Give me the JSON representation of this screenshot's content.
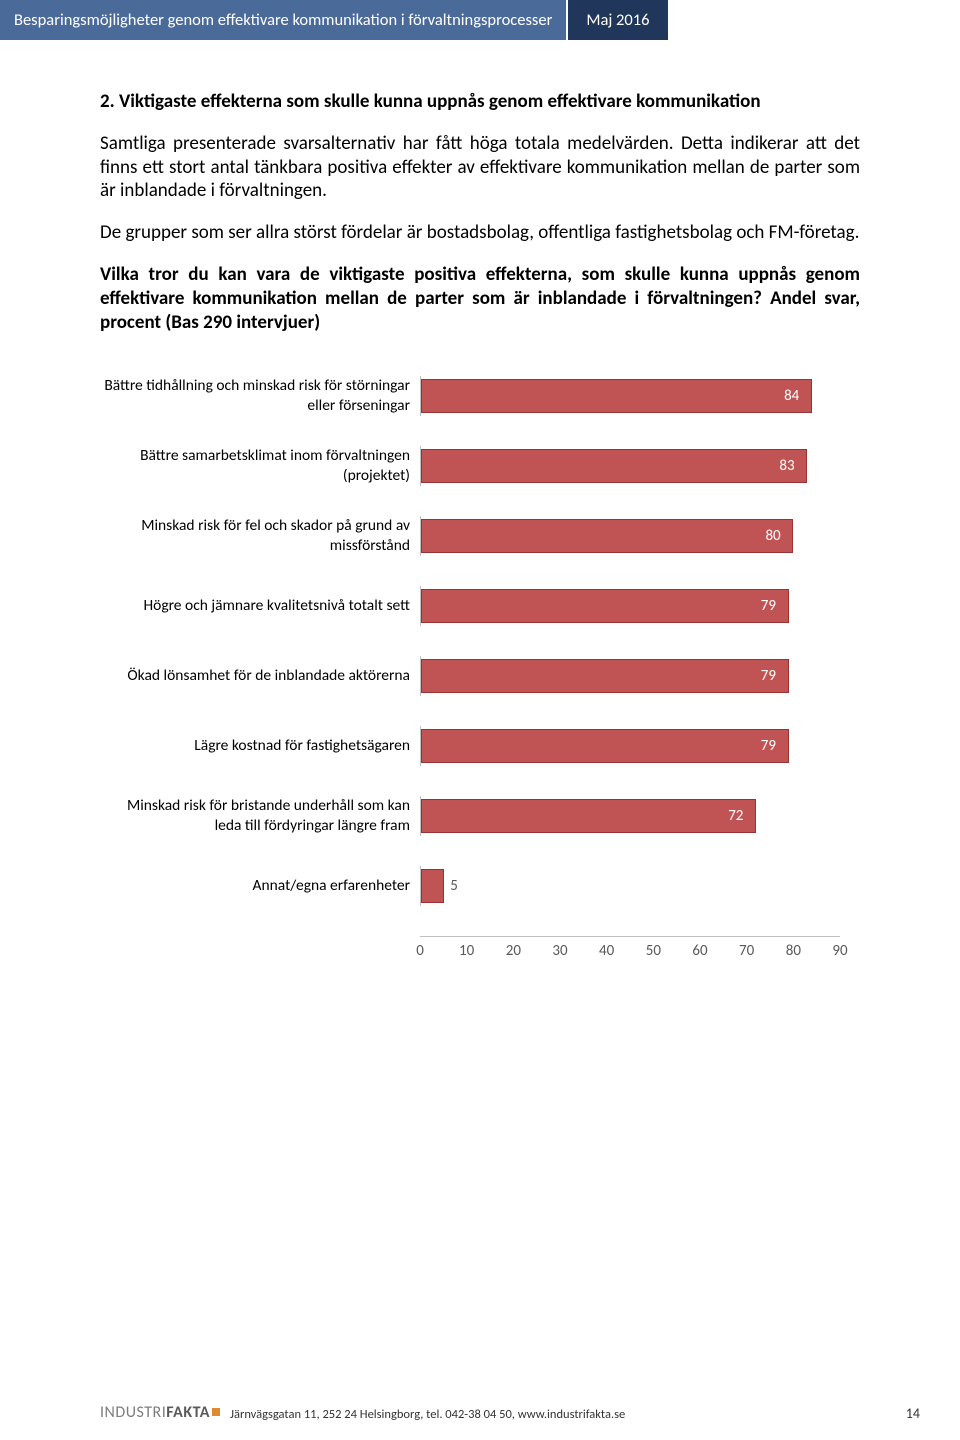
{
  "header": {
    "title": "Besparingsmöjligheter genom effektivare kommunikation i förvaltningsprocesser",
    "date": "Maj 2016",
    "title_bg": "#4a6a9a",
    "date_bg": "#20365a"
  },
  "section": {
    "heading": "2. Viktigaste effekterna som skulle kunna uppnås genom effektivare kommunikation",
    "para1": "Samtliga presenterade svarsalternativ har fått höga totala medelvärden. Detta indikerar att det finns ett stort antal tänkbara positiva effekter av effektivare kommunikation mellan de parter som är inblandade i förvaltningen.",
    "para2": "De grupper som ser allra störst fördelar är bostadsbolag, offentliga fastighetsbolag och FM-företag.",
    "question": "Vilka tror du kan vara de viktigaste positiva effekterna, som skulle kunna uppnås genom effektivare kommunikation mellan de parter som är inblandade i förvaltningen? Andel svar, procent (Bas 290 intervjuer)"
  },
  "chart": {
    "type": "bar",
    "bar_color": "#c05454",
    "bar_border": "#993333",
    "axis_color": "#bfbfbf",
    "value_color": "#ffffff",
    "label_fontsize": 15.5,
    "value_fontsize": 15,
    "xmax": 90,
    "xtick_step": 10,
    "ticks": [
      0,
      10,
      20,
      30,
      40,
      50,
      60,
      70,
      80,
      90
    ],
    "items": [
      {
        "label": "Bättre tidhållning och minskad risk för störningar eller förseningar",
        "value": 84
      },
      {
        "label": "Bättre samarbetsklimat inom förvaltningen (projektet)",
        "value": 83
      },
      {
        "label": "Minskad risk för fel och skador på grund av missförstånd",
        "value": 80
      },
      {
        "label": "Högre och jämnare kvalitetsnivå totalt sett",
        "value": 79
      },
      {
        "label": "Ökad lönsamhet för de inblandade aktörerna",
        "value": 79
      },
      {
        "label": "Lägre kostnad för fastighetsägaren",
        "value": 79
      },
      {
        "label": "Minskad risk för bristande underhåll som kan leda till fördyringar längre fram",
        "value": 72
      },
      {
        "label": "Annat/egna erfarenheter",
        "value": 5
      }
    ]
  },
  "footer": {
    "logo_industri": "INDUSTRI",
    "logo_fakta": "FAKTA",
    "address": "Järnvägsgatan 11, 252 24 Helsingborg, tel. 042-38 04 50, www.industrifakta.se",
    "page": "14"
  }
}
